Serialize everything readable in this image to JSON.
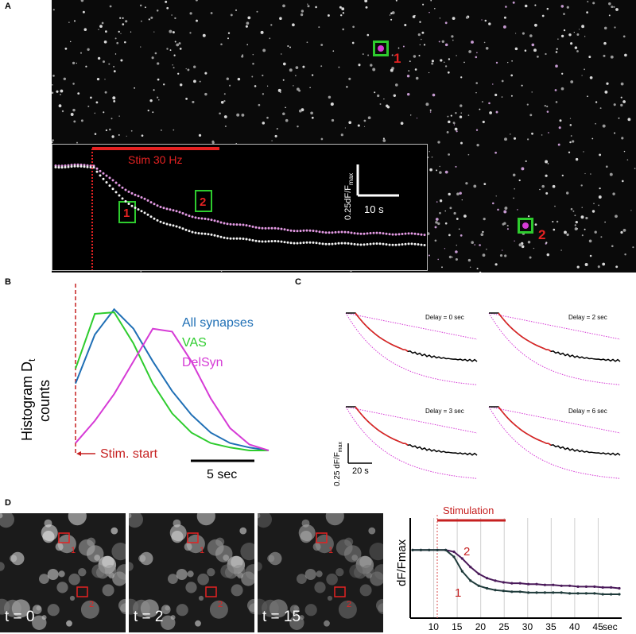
{
  "panels": {
    "a": "A",
    "b": "B",
    "c": "C",
    "d": "D"
  },
  "panel_a": {
    "roi_labels": [
      "1",
      "2"
    ],
    "inset": {
      "stim_label": "Stim 30 Hz",
      "scale_y": "0.25dF/F",
      "scale_y_sub": "max",
      "scale_x": "10 s",
      "box_labels": [
        "1",
        "2"
      ]
    }
  },
  "panel_b": {
    "y_label_1": "Histogram D",
    "y_label_sub": "t",
    "y_label_2": "counts",
    "stim_label": "Stim. start",
    "scale_label": "5 sec",
    "legend": [
      {
        "label": "All synapses",
        "color": "#1f6fb5"
      },
      {
        "label": "VAS",
        "color": "#2ecc2e"
      },
      {
        "label": "DelSyn",
        "color": "#d63bd6"
      }
    ]
  },
  "panel_c": {
    "subpanels": [
      {
        "label": "Delay = 0 sec"
      },
      {
        "label": "Delay = 2 sec"
      },
      {
        "label": "Delay = 3 sec"
      },
      {
        "label": "Delay = 6 sec"
      }
    ],
    "scale_y": "0.25 dF/F",
    "scale_y_sub": "max",
    "scale_x": "20 s"
  },
  "panel_d": {
    "frames": [
      {
        "time": "t = 0"
      },
      {
        "time": "t = 2"
      },
      {
        "time": "t = 15"
      }
    ],
    "roi_labels": [
      "1",
      "2"
    ]
  },
  "chart_data": [
    {
      "type": "line",
      "title": "",
      "xlabel": "",
      "ylabel": "Histogram Dt counts",
      "series": [
        {
          "name": "All synapses",
          "color": "#1f6fb5",
          "values": [
            0.45,
            0.78,
            0.95,
            0.82,
            0.6,
            0.4,
            0.24,
            0.12,
            0.05,
            0.02,
            0.0
          ]
        },
        {
          "name": "VAS",
          "color": "#2ecc2e",
          "values": [
            0.55,
            0.92,
            0.93,
            0.72,
            0.45,
            0.25,
            0.12,
            0.05,
            0.02,
            0.0,
            0.0
          ]
        },
        {
          "name": "DelSyn",
          "color": "#d63bd6",
          "values": [
            0.05,
            0.2,
            0.38,
            0.6,
            0.82,
            0.8,
            0.6,
            0.35,
            0.15,
            0.04,
            0.0
          ]
        }
      ]
    },
    {
      "type": "line",
      "title": "",
      "xlabel": "sec",
      "ylabel": "dF/Fmax",
      "x_ticks": [
        10,
        15,
        20,
        25,
        30,
        35,
        40,
        45
      ],
      "xlim": [
        5,
        50
      ],
      "annotations": [
        "Stimulation"
      ],
      "series": [
        {
          "name": "2",
          "color": "#4a1a5a",
          "values": [
            0.8,
            0.8,
            0.8,
            0.8,
            0.8,
            0.78,
            0.7,
            0.6,
            0.52,
            0.47,
            0.44,
            0.42,
            0.41,
            0.41,
            0.4,
            0.4,
            0.39,
            0.39,
            0.38,
            0.38,
            0.37,
            0.37,
            0.37,
            0.36,
            0.36,
            0.35
          ]
        },
        {
          "name": "1",
          "color": "#1f3b3b",
          "values": [
            0.8,
            0.8,
            0.8,
            0.8,
            0.8,
            0.72,
            0.55,
            0.44,
            0.38,
            0.35,
            0.33,
            0.32,
            0.31,
            0.31,
            0.3,
            0.3,
            0.3,
            0.3,
            0.3,
            0.29,
            0.29,
            0.29,
            0.29,
            0.28,
            0.28,
            0.28
          ]
        }
      ]
    }
  ]
}
